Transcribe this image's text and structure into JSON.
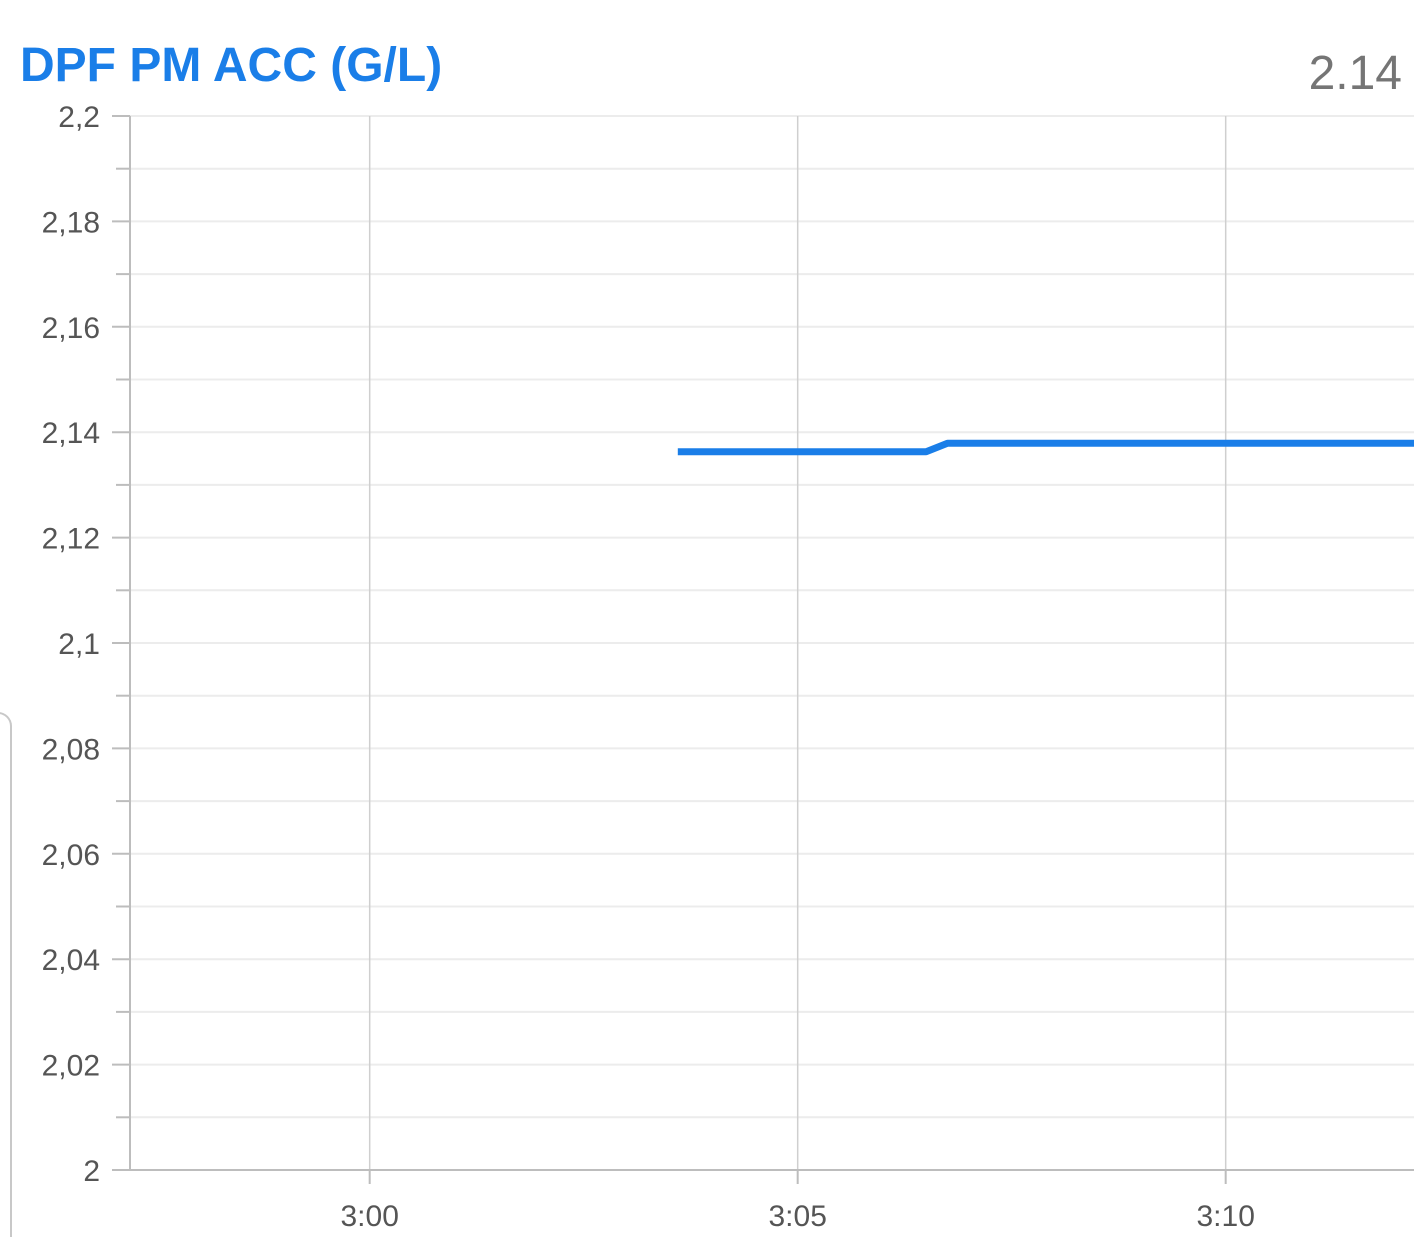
{
  "header": {
    "title": "DPF PM ACC (G/L)",
    "current_value": "2.14"
  },
  "colors": {
    "accent": "#1a7ee8",
    "grid_major": "#cfcfcf",
    "grid_minor": "#ececec",
    "axis": "#bdbdbd",
    "label": "#555555"
  },
  "chart_data": {
    "type": "line",
    "title": "DPF PM ACC (G/L)",
    "xlabel": "",
    "ylabel": "",
    "ylim": [
      2.0,
      2.2
    ],
    "y_ticks": [
      "2,2",
      "2,18",
      "2,16",
      "2,14",
      "2,12",
      "2,1",
      "2,08",
      "2,06",
      "2,04",
      "2,02",
      "2"
    ],
    "y_tick_values": [
      2.2,
      2.18,
      2.16,
      2.14,
      2.12,
      2.1,
      2.08,
      2.06,
      2.04,
      2.02,
      2.0
    ],
    "x_ticks": [
      "3:00",
      "3:05",
      "3:10"
    ],
    "x_tick_minutes": [
      180,
      185,
      190
    ],
    "xlim_minutes": [
      177.2,
      192.2
    ],
    "grid": true,
    "legend": "none",
    "series": [
      {
        "color": "#1a7ee8",
        "x_minutes": [
          183.6,
          186.5,
          186.75,
          192.2
        ],
        "y": [
          2.1363,
          2.1363,
          2.1379,
          2.1379
        ]
      }
    ]
  }
}
